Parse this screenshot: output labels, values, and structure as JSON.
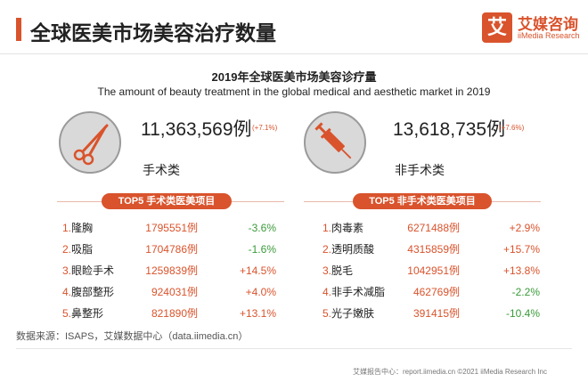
{
  "header": {
    "title": "全球医美市场美容治疗数量",
    "brand_mark": "艾",
    "brand_name": "艾媒咨询",
    "brand_sub": "iiMedia Research"
  },
  "chart_data": {
    "type": "table",
    "title": "2019年全球医美市场美容诊疗量",
    "subtitle": "The amount of beauty treatment in the global medical and aesthetic market in 2019",
    "categories": [
      {
        "name": "手术类",
        "total": "11,363,569例",
        "total_value": 11363569,
        "growth": "(+7.1%)",
        "icon": "scissors-icon",
        "top5_title": "TOP5 手术类医美项目",
        "items": [
          {
            "rank": "1.",
            "name": "隆胸",
            "count": "1795551例",
            "value": 1795551,
            "growth": "-3.6%",
            "trend": "down"
          },
          {
            "rank": "2.",
            "name": "吸脂",
            "count": "1704786例",
            "value": 1704786,
            "growth": "-1.6%",
            "trend": "down"
          },
          {
            "rank": "3.",
            "name": "眼睑手术",
            "count": "1259839例",
            "value": 1259839,
            "growth": "+14.5%",
            "trend": "up"
          },
          {
            "rank": "4.",
            "name": "腹部整形",
            "count": "924031例",
            "value": 924031,
            "growth": "+4.0%",
            "trend": "up"
          },
          {
            "rank": "5.",
            "name": "鼻整形",
            "count": "821890例",
            "value": 821890,
            "growth": "+13.1%",
            "trend": "up"
          }
        ]
      },
      {
        "name": "非手术类",
        "total": "13,618,735例",
        "total_value": 13618735,
        "growth": "(+7.6%)",
        "icon": "syringe-icon",
        "top5_title": "TOP5 非手术类医美项目",
        "items": [
          {
            "rank": "1.",
            "name": "肉毒素",
            "count": "6271488例",
            "value": 6271488,
            "growth": "+2.9%",
            "trend": "up"
          },
          {
            "rank": "2.",
            "name": "透明质酸",
            "count": "4315859例",
            "value": 4315859,
            "growth": "+15.7%",
            "trend": "up"
          },
          {
            "rank": "3.",
            "name": "脱毛",
            "count": "1042951例",
            "value": 1042951,
            "growth": "+13.8%",
            "trend": "up"
          },
          {
            "rank": "4.",
            "name": "非手术减脂",
            "count": "462769例",
            "value": 462769,
            "growth": "-2.2%",
            "trend": "down"
          },
          {
            "rank": "5.",
            "name": "光子嫩肤",
            "count": "391415例",
            "value": 391415,
            "growth": "-10.4%",
            "trend": "down"
          }
        ]
      }
    ]
  },
  "source": "数据来源：ISAPS，艾媒数据中心（data.iimedia.cn）",
  "footer": "艾媒报告中心：report.iimedia.cn  ©2021  iiMedia Research  Inc",
  "colors": {
    "accent": "#d9532c",
    "decline": "#3a9a3a"
  }
}
